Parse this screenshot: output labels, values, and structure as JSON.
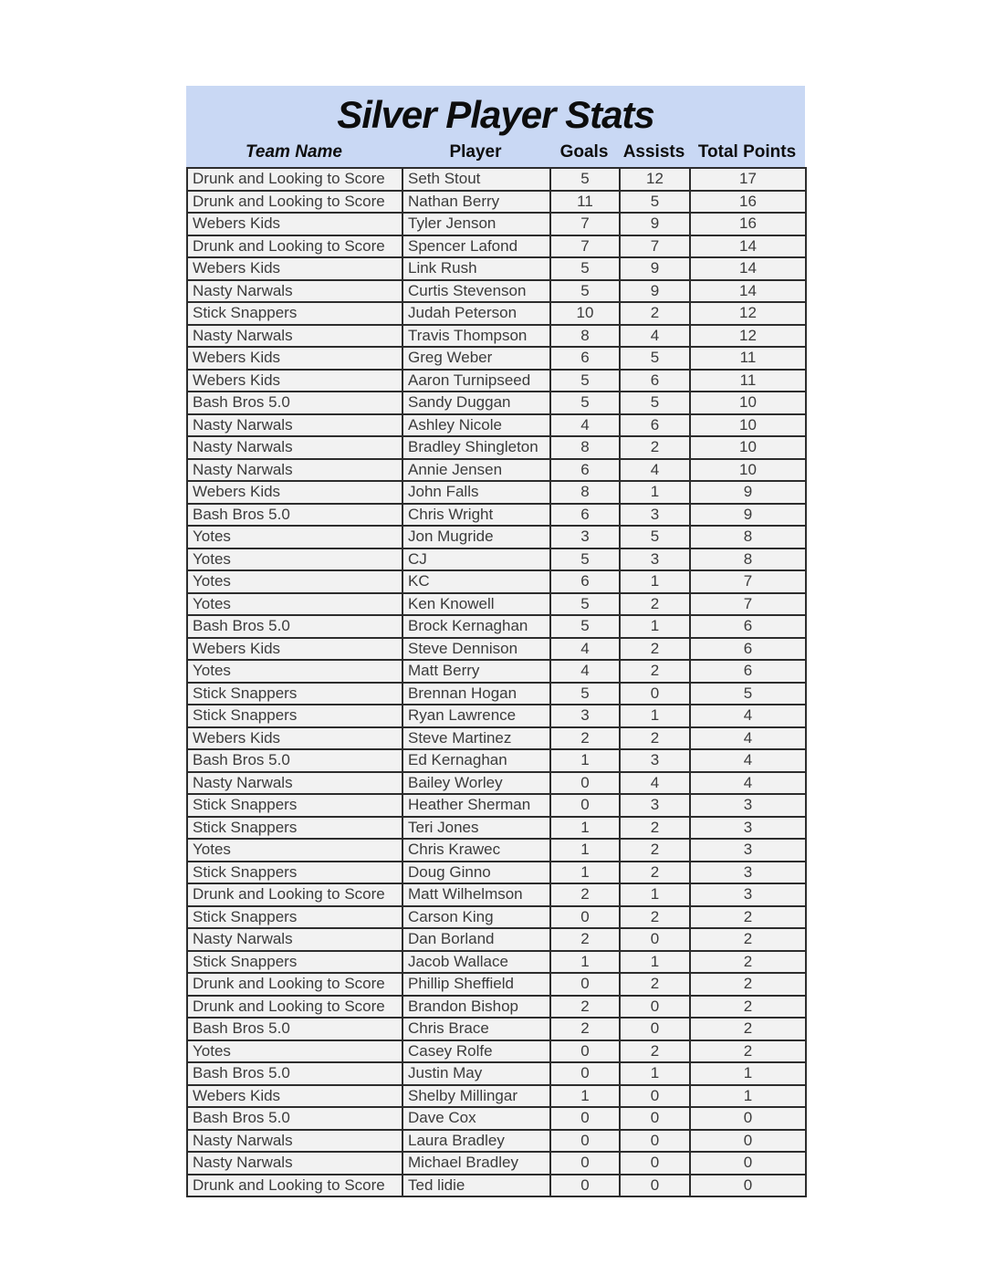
{
  "title": "Silver Player Stats",
  "columns": [
    "Team Name",
    "Player",
    "Goals",
    "Assists",
    "Total Points"
  ],
  "colors": {
    "header_bg": "#c9d8f4",
    "row_bg": "#f2f2f2",
    "border": "#2d2d2d",
    "text": "#3b3b3b",
    "title": "#0d0d0d"
  },
  "rows": [
    {
      "team": "Drunk and Looking to Score",
      "player": "Seth Stout",
      "goals": 5,
      "assists": 12,
      "points": 17
    },
    {
      "team": "Drunk and Looking to Score",
      "player": "Nathan Berry",
      "goals": 11,
      "assists": 5,
      "points": 16
    },
    {
      "team": "Webers Kids",
      "player": "Tyler Jenson",
      "goals": 7,
      "assists": 9,
      "points": 16
    },
    {
      "team": "Drunk and Looking to Score",
      "player": "Spencer Lafond",
      "goals": 7,
      "assists": 7,
      "points": 14
    },
    {
      "team": "Webers Kids",
      "player": "Link Rush",
      "goals": 5,
      "assists": 9,
      "points": 14
    },
    {
      "team": "Nasty Narwals",
      "player": "Curtis Stevenson",
      "goals": 5,
      "assists": 9,
      "points": 14
    },
    {
      "team": "Stick Snappers",
      "player": "Judah Peterson",
      "goals": 10,
      "assists": 2,
      "points": 12
    },
    {
      "team": "Nasty Narwals",
      "player": "Travis Thompson",
      "goals": 8,
      "assists": 4,
      "points": 12
    },
    {
      "team": "Webers Kids",
      "player": "Greg Weber",
      "goals": 6,
      "assists": 5,
      "points": 11
    },
    {
      "team": "Webers Kids",
      "player": "Aaron Turnipseed",
      "goals": 5,
      "assists": 6,
      "points": 11
    },
    {
      "team": "Bash Bros 5.0",
      "player": "Sandy Duggan",
      "goals": 5,
      "assists": 5,
      "points": 10
    },
    {
      "team": "Nasty Narwals",
      "player": "Ashley Nicole",
      "goals": 4,
      "assists": 6,
      "points": 10
    },
    {
      "team": "Nasty Narwals",
      "player": "Bradley Shingleton",
      "goals": 8,
      "assists": 2,
      "points": 10
    },
    {
      "team": "Nasty Narwals",
      "player": "Annie Jensen",
      "goals": 6,
      "assists": 4,
      "points": 10
    },
    {
      "team": "Webers Kids",
      "player": "John Falls",
      "goals": 8,
      "assists": 1,
      "points": 9
    },
    {
      "team": "Bash Bros 5.0",
      "player": "Chris Wright",
      "goals": 6,
      "assists": 3,
      "points": 9
    },
    {
      "team": "Yotes",
      "player": "Jon Mugride",
      "goals": 3,
      "assists": 5,
      "points": 8
    },
    {
      "team": "Yotes",
      "player": "CJ",
      "goals": 5,
      "assists": 3,
      "points": 8
    },
    {
      "team": "Yotes",
      "player": "KC",
      "goals": 6,
      "assists": 1,
      "points": 7
    },
    {
      "team": "Yotes",
      "player": "Ken Knowell",
      "goals": 5,
      "assists": 2,
      "points": 7
    },
    {
      "team": "Bash Bros 5.0",
      "player": "Brock Kernaghan",
      "goals": 5,
      "assists": 1,
      "points": 6
    },
    {
      "team": "Webers Kids",
      "player": "Steve Dennison",
      "goals": 4,
      "assists": 2,
      "points": 6
    },
    {
      "team": "Yotes",
      "player": "Matt Berry",
      "goals": 4,
      "assists": 2,
      "points": 6
    },
    {
      "team": "Stick Snappers",
      "player": "Brennan Hogan",
      "goals": 5,
      "assists": 0,
      "points": 5
    },
    {
      "team": "Stick Snappers",
      "player": "Ryan Lawrence",
      "goals": 3,
      "assists": 1,
      "points": 4
    },
    {
      "team": "Webers Kids",
      "player": "Steve Martinez",
      "goals": 2,
      "assists": 2,
      "points": 4
    },
    {
      "team": "Bash Bros 5.0",
      "player": "Ed Kernaghan",
      "goals": 1,
      "assists": 3,
      "points": 4
    },
    {
      "team": "Nasty Narwals",
      "player": "Bailey Worley",
      "goals": 0,
      "assists": 4,
      "points": 4
    },
    {
      "team": "Stick Snappers",
      "player": "Heather Sherman",
      "goals": 0,
      "assists": 3,
      "points": 3
    },
    {
      "team": "Stick Snappers",
      "player": "Teri Jones",
      "goals": 1,
      "assists": 2,
      "points": 3
    },
    {
      "team": "Yotes",
      "player": "Chris Krawec",
      "goals": 1,
      "assists": 2,
      "points": 3
    },
    {
      "team": "Stick Snappers",
      "player": "Doug Ginno",
      "goals": 1,
      "assists": 2,
      "points": 3
    },
    {
      "team": "Drunk and Looking to Score",
      "player": "Matt Wilhelmson",
      "goals": 2,
      "assists": 1,
      "points": 3
    },
    {
      "team": "Stick Snappers",
      "player": "Carson King",
      "goals": 0,
      "assists": 2,
      "points": 2
    },
    {
      "team": "Nasty Narwals",
      "player": "Dan Borland",
      "goals": 2,
      "assists": 0,
      "points": 2
    },
    {
      "team": "Stick Snappers",
      "player": "Jacob Wallace",
      "goals": 1,
      "assists": 1,
      "points": 2
    },
    {
      "team": "Drunk and Looking to Score",
      "player": "Phillip Sheffield",
      "goals": 0,
      "assists": 2,
      "points": 2
    },
    {
      "team": "Drunk and Looking to Score",
      "player": "Brandon Bishop",
      "goals": 2,
      "assists": 0,
      "points": 2
    },
    {
      "team": "Bash Bros 5.0",
      "player": "Chris Brace",
      "goals": 2,
      "assists": 0,
      "points": 2
    },
    {
      "team": "Yotes",
      "player": "Casey Rolfe",
      "goals": 0,
      "assists": 2,
      "points": 2
    },
    {
      "team": "Bash Bros 5.0",
      "player": "Justin May",
      "goals": 0,
      "assists": 1,
      "points": 1
    },
    {
      "team": "Webers Kids",
      "player": "Shelby Millingar",
      "goals": 1,
      "assists": 0,
      "points": 1
    },
    {
      "team": "Bash Bros 5.0",
      "player": "Dave Cox",
      "goals": 0,
      "assists": 0,
      "points": 0
    },
    {
      "team": "Nasty Narwals",
      "player": "Laura Bradley",
      "goals": 0,
      "assists": 0,
      "points": 0
    },
    {
      "team": "Nasty Narwals",
      "player": "Michael Bradley",
      "goals": 0,
      "assists": 0,
      "points": 0
    },
    {
      "team": "Drunk and Looking to Score",
      "player": "Ted lidie",
      "goals": 0,
      "assists": 0,
      "points": 0
    }
  ]
}
